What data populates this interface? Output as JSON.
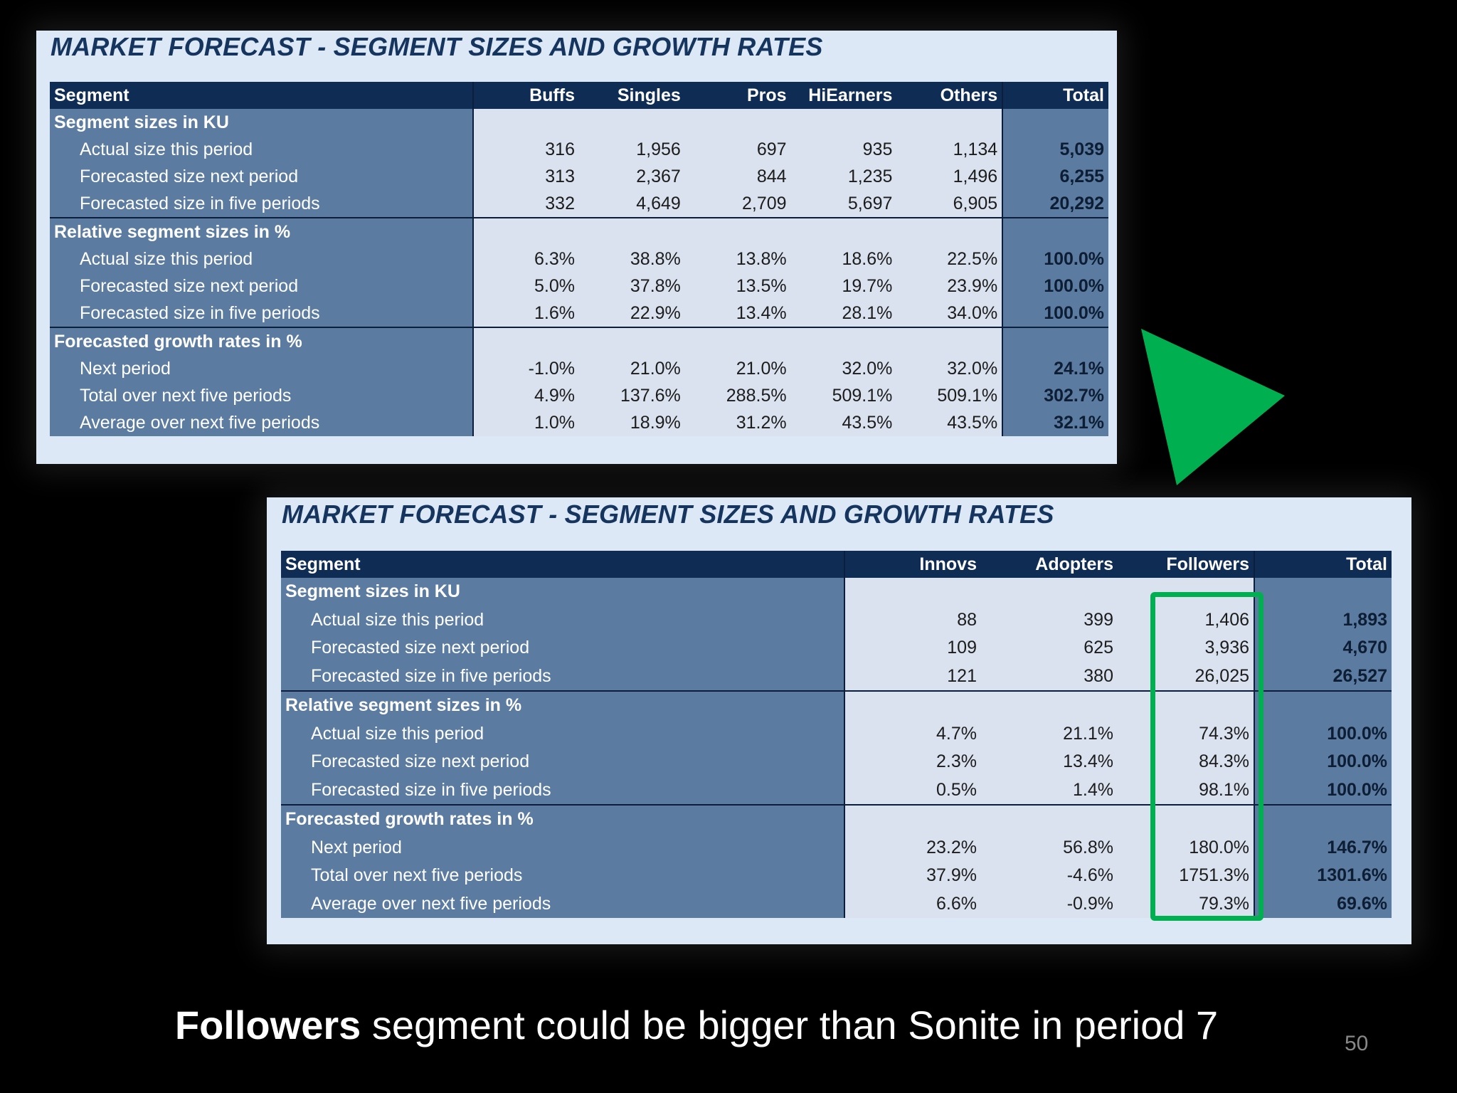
{
  "before": {
    "title": "MARKET FORECAST - SEGMENT SIZES AND GROWTH RATES",
    "headers": [
      "Segment",
      "Buffs",
      "Singles",
      "Pros",
      "HiEarners",
      "Others",
      "Total"
    ],
    "sections": [
      {
        "title": "Segment sizes in KU",
        "rows": [
          {
            "label": "Actual size this period",
            "values": [
              "316",
              "1,956",
              "697",
              "935",
              "1,134"
            ],
            "total": "5,039"
          },
          {
            "label": "Forecasted size next period",
            "values": [
              "313",
              "2,367",
              "844",
              "1,235",
              "1,496"
            ],
            "total": "6,255"
          },
          {
            "label": "Forecasted size in five periods",
            "values": [
              "332",
              "4,649",
              "2,709",
              "5,697",
              "6,905"
            ],
            "total": "20,292"
          }
        ]
      },
      {
        "title": "Relative segment sizes in %",
        "rows": [
          {
            "label": "Actual size this period",
            "values": [
              "6.3%",
              "38.8%",
              "13.8%",
              "18.6%",
              "22.5%"
            ],
            "total": "100.0%"
          },
          {
            "label": "Forecasted size next period",
            "values": [
              "5.0%",
              "37.8%",
              "13.5%",
              "19.7%",
              "23.9%"
            ],
            "total": "100.0%"
          },
          {
            "label": "Forecasted size in five periods",
            "values": [
              "1.6%",
              "22.9%",
              "13.4%",
              "28.1%",
              "34.0%"
            ],
            "total": "100.0%"
          }
        ]
      },
      {
        "title": "Forecasted growth rates in %",
        "rows": [
          {
            "label": "Next period",
            "values": [
              "-1.0%",
              "21.0%",
              "21.0%",
              "32.0%",
              "32.0%"
            ],
            "total": "24.1%"
          },
          {
            "label": "Total over next five periods",
            "values": [
              "4.9%",
              "137.6%",
              "288.5%",
              "509.1%",
              "509.1%"
            ],
            "total": "302.7%"
          },
          {
            "label": "Average over next five periods",
            "values": [
              "1.0%",
              "18.9%",
              "31.2%",
              "43.5%",
              "43.5%"
            ],
            "total": "32.1%"
          }
        ]
      }
    ]
  },
  "after": {
    "title": "MARKET FORECAST - SEGMENT SIZES AND GROWTH RATES",
    "headers": [
      "Segment",
      "Innovs",
      "Adopters",
      "Followers",
      "Total"
    ],
    "sections": [
      {
        "title": "Segment sizes in KU",
        "rows": [
          {
            "label": "Actual size this period",
            "values": [
              "88",
              "399",
              "1,406"
            ],
            "total": "1,893"
          },
          {
            "label": "Forecasted size next period",
            "values": [
              "109",
              "625",
              "3,936"
            ],
            "total": "4,670"
          },
          {
            "label": "Forecasted size in five periods",
            "values": [
              "121",
              "380",
              "26,025"
            ],
            "total": "26,527"
          }
        ]
      },
      {
        "title": "Relative segment sizes in %",
        "rows": [
          {
            "label": "Actual size this period",
            "values": [
              "4.7%",
              "21.1%",
              "74.3%"
            ],
            "total": "100.0%"
          },
          {
            "label": "Forecasted size next period",
            "values": [
              "2.3%",
              "13.4%",
              "84.3%"
            ],
            "total": "100.0%"
          },
          {
            "label": "Forecasted size in five periods",
            "values": [
              "0.5%",
              "1.4%",
              "98.1%"
            ],
            "total": "100.0%"
          }
        ]
      },
      {
        "title": "Forecasted growth rates in %",
        "rows": [
          {
            "label": "Next period",
            "values": [
              "23.2%",
              "56.8%",
              "180.0%"
            ],
            "total": "146.7%"
          },
          {
            "label": "Total over next five periods",
            "values": [
              "37.9%",
              "-4.6%",
              "1751.3%"
            ],
            "total": "1301.6%"
          },
          {
            "label": "Average over next five periods",
            "values": [
              "6.6%",
              "-0.9%",
              "79.3%"
            ],
            "total": "69.6%"
          }
        ]
      }
    ]
  },
  "colors": {
    "arrow": "#00b050",
    "highlight": "#00b050",
    "header_bg": "#0f2c55",
    "label_bg": "#5b7ba0",
    "data_bg": "#d9e2ee"
  },
  "caption": {
    "bold": "Followers",
    "rest": " segment could be bigger than Sonite in period 7"
  },
  "page_number": "50"
}
